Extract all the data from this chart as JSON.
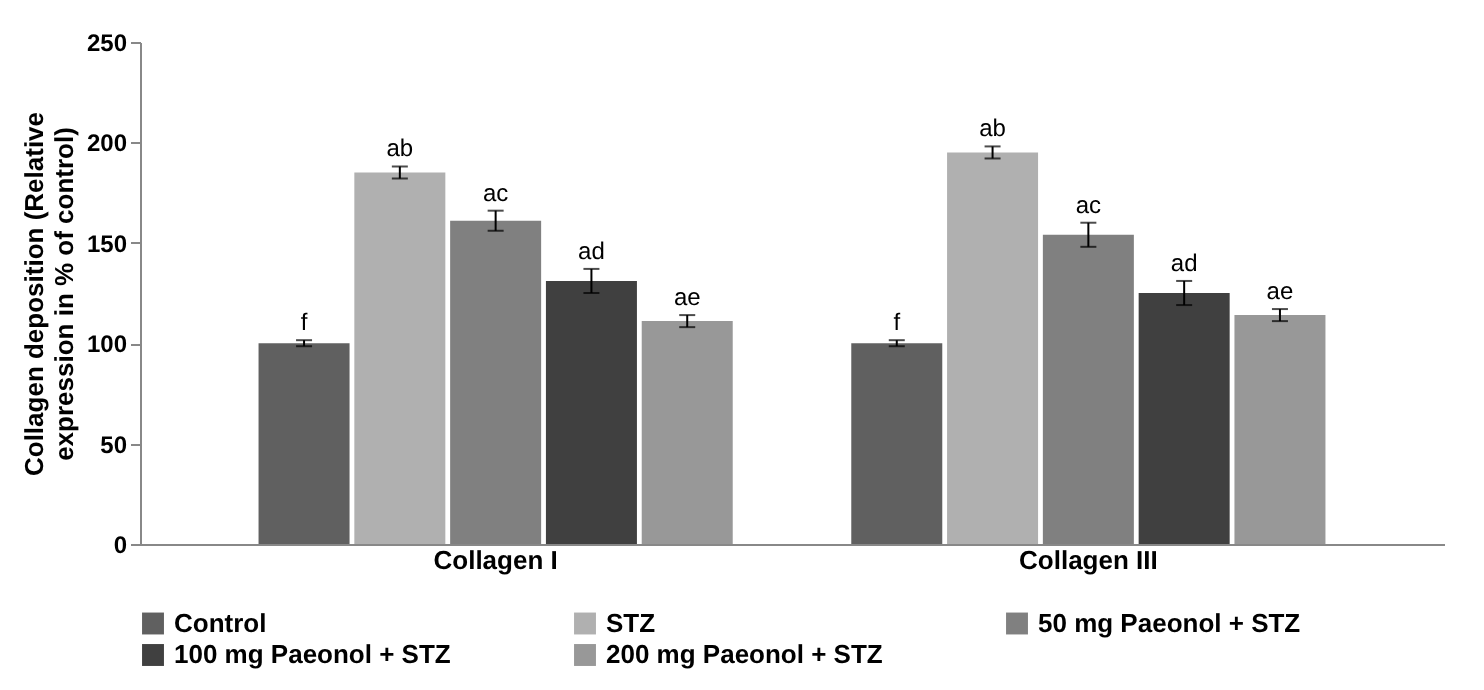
{
  "chart_data": {
    "type": "bar",
    "ylabel": "Collagen deposition (Relative expression in % of control)",
    "categories": [
      "Collagen I",
      "Collagen III"
    ],
    "series": [
      {
        "name": "Control",
        "color": "#606060",
        "values": [
          100,
          100
        ],
        "errors": [
          1.5,
          1.5
        ],
        "value_labels": [
          "f",
          "f"
        ]
      },
      {
        "name": "STZ",
        "color": "#b0b0b0",
        "values": [
          185,
          195
        ],
        "errors": [
          3,
          3
        ],
        "value_labels": [
          "ab",
          "ab"
        ]
      },
      {
        "name": "50 mg Paeonol + STZ",
        "color": "#808080",
        "values": [
          161,
          154
        ],
        "errors": [
          5,
          6
        ],
        "value_labels": [
          "ac",
          "ac"
        ]
      },
      {
        "name": "100 mg Paeonol + STZ",
        "color": "#404040",
        "values": [
          131,
          125
        ],
        "errors": [
          6,
          6
        ],
        "value_labels": [
          "ad",
          "ad"
        ]
      },
      {
        "name": "200 mg Paeonol + STZ",
        "color": "#989898",
        "values": [
          111,
          114
        ],
        "errors": [
          3,
          3
        ],
        "value_labels": [
          "ae",
          "ae"
        ]
      }
    ],
    "ylim": [
      0,
      250
    ],
    "yticks": [
      0,
      50,
      100,
      150,
      200,
      250
    ],
    "grid": false,
    "legend": "bottom"
  }
}
